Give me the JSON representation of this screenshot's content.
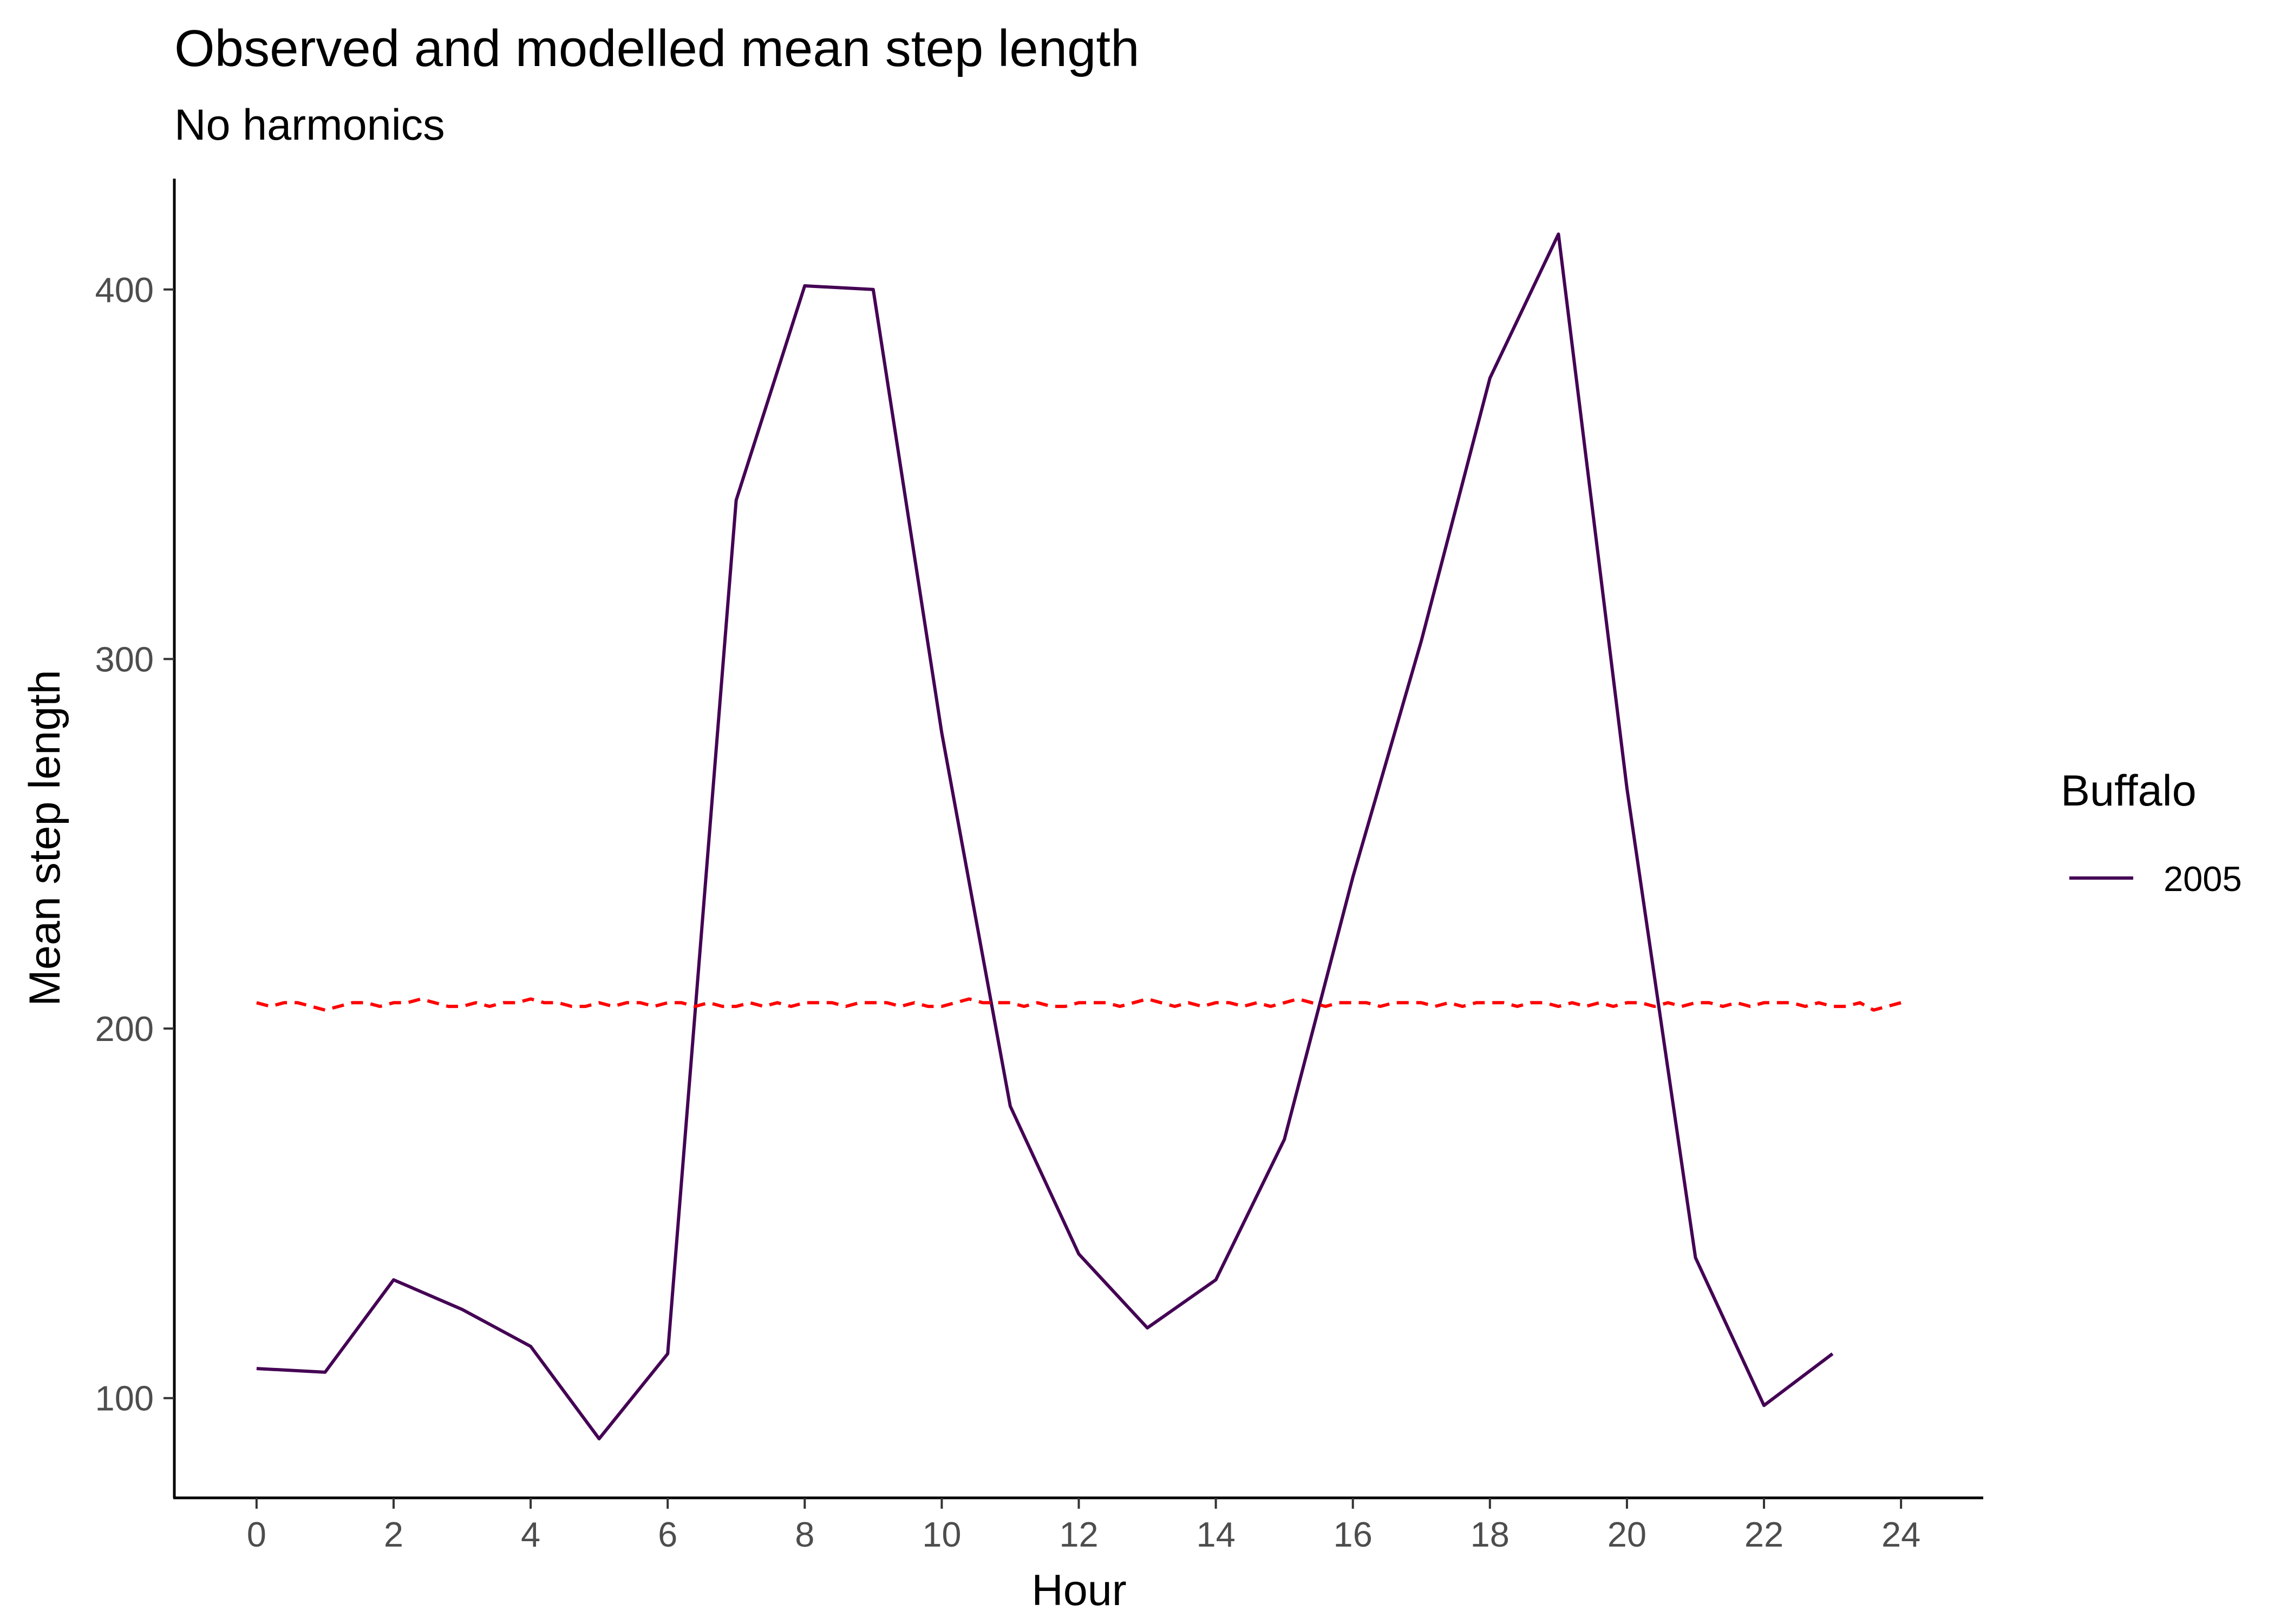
{
  "chart_data": {
    "type": "line",
    "title": "Observed and modelled mean step length",
    "subtitle": "No harmonics",
    "xlabel": "Hour",
    "ylabel": "Mean step length",
    "xlim": [
      -1.2,
      25.2
    ],
    "ylim": [
      73,
      430
    ],
    "x_ticks": [
      0,
      2,
      4,
      6,
      8,
      10,
      12,
      14,
      16,
      18,
      20,
      22,
      24
    ],
    "y_ticks": [
      100,
      200,
      300,
      400
    ],
    "grid": false,
    "legend": {
      "title": "Buffalo",
      "position": "right",
      "entries": [
        "2005"
      ]
    },
    "series": [
      {
        "name": "2005",
        "color": "#440154",
        "style": "solid",
        "x": [
          0,
          1,
          2,
          3,
          4,
          5,
          6,
          7,
          8,
          9,
          10,
          11,
          12,
          13,
          14,
          15,
          16,
          17,
          18,
          19,
          20,
          21,
          22,
          23
        ],
        "y": [
          108,
          107,
          132,
          124,
          114,
          89,
          112,
          343,
          401,
          400,
          280,
          179,
          139,
          119,
          132,
          170,
          241,
          305,
          376,
          415,
          265,
          138,
          98,
          112
        ]
      },
      {
        "color": "#ff0000",
        "style": "dashed",
        "x": [
          0,
          0.2,
          0.4,
          0.6,
          0.8,
          1,
          1.2,
          1.4,
          1.6,
          1.8,
          2,
          2.2,
          2.4,
          2.6,
          2.8,
          3,
          3.2,
          3.4,
          3.6,
          3.8,
          4,
          4.2,
          4.4,
          4.6,
          4.8,
          5,
          5.2,
          5.4,
          5.6,
          5.8,
          6,
          6.2,
          6.4,
          6.6,
          6.8,
          7,
          7.2,
          7.4,
          7.6,
          7.8,
          8,
          8.2,
          8.4,
          8.6,
          8.8,
          9,
          9.2,
          9.4,
          9.6,
          9.8,
          10,
          10.2,
          10.4,
          10.6,
          10.8,
          11,
          11.2,
          11.4,
          11.6,
          11.8,
          12,
          12.2,
          12.4,
          12.6,
          12.8,
          13,
          13.2,
          13.4,
          13.6,
          13.8,
          14,
          14.2,
          14.4,
          14.6,
          14.8,
          15,
          15.2,
          15.4,
          15.6,
          15.8,
          16,
          16.2,
          16.4,
          16.6,
          16.8,
          17,
          17.2,
          17.4,
          17.6,
          17.8,
          18,
          18.2,
          18.4,
          18.6,
          18.8,
          19,
          19.2,
          19.4,
          19.6,
          19.8,
          20,
          20.2,
          20.4,
          20.6,
          20.8,
          21,
          21.2,
          21.4,
          21.6,
          21.8,
          22,
          22.2,
          22.4,
          22.6,
          22.8,
          23,
          23.2,
          23.4,
          23.6,
          23.8,
          24
        ],
        "y": [
          207,
          206,
          207,
          207,
          206,
          205,
          206,
          207,
          207,
          206,
          207,
          207,
          208,
          207,
          206,
          206,
          207,
          206,
          207,
          207,
          208,
          207,
          207,
          206,
          206,
          207,
          206,
          207,
          207,
          206,
          207,
          207,
          206,
          207,
          206,
          206,
          207,
          206,
          207,
          206,
          207,
          207,
          207,
          206,
          207,
          207,
          207,
          206,
          207,
          206,
          206,
          207,
          208,
          207,
          207,
          207,
          206,
          207,
          206,
          206,
          207,
          207,
          207,
          206,
          207,
          208,
          207,
          206,
          207,
          206,
          207,
          207,
          206,
          207,
          206,
          207,
          208,
          207,
          206,
          207,
          207,
          207,
          206,
          207,
          207,
          207,
          206,
          207,
          206,
          207,
          207,
          207,
          206,
          207,
          207,
          206,
          207,
          206,
          207,
          206,
          207,
          207,
          206,
          207,
          206,
          207,
          207,
          206,
          207,
          206,
          207,
          207,
          207,
          206,
          207,
          206,
          206,
          207,
          205,
          206,
          207
        ]
      }
    ]
  }
}
